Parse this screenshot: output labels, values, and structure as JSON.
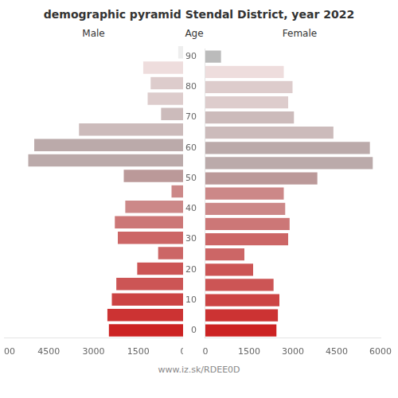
{
  "chart_data": {
    "type": "bar",
    "orientation": "horizontal",
    "title": "demographic pyramid Stendal District, year 2022",
    "ylabel": "Age",
    "annotations": [
      "www.iz.sk/RDEE0D"
    ],
    "categories": [
      "0",
      null,
      "10",
      null,
      "20",
      null,
      "30",
      null,
      "40",
      null,
      "50",
      null,
      "60",
      null,
      "70",
      null,
      "80",
      null,
      "90"
    ],
    "series": [
      {
        "name": "Male",
        "values": [
          2500,
          2550,
          2400,
          2250,
          1550,
          850,
          2200,
          2300,
          1950,
          400,
          2000,
          5200,
          5000,
          3500,
          750,
          1200,
          1100,
          1350,
          180
        ],
        "colors": [
          "#cc2222",
          "#cc3333",
          "#cc4444",
          "#cc5555",
          "#cc5555",
          "#cc6666",
          "#cc6666",
          "#cc7777",
          "#cc8888",
          "#cc8888",
          "#bb9999",
          "#bbaaaa",
          "#bbaaaa",
          "#ccbbbb",
          "#ccbbbb",
          "#ddcccc",
          "#ddcccc",
          "#eedddd",
          "#eeeeee"
        ]
      },
      {
        "name": "Female",
        "values": [
          2450,
          2500,
          2550,
          2350,
          1650,
          1350,
          2850,
          2900,
          2750,
          2700,
          3850,
          5750,
          5650,
          4400,
          3050,
          2850,
          3000,
          2700,
          550
        ],
        "colors": [
          "#cc2222",
          "#cc3333",
          "#cc4444",
          "#cc5555",
          "#cc5555",
          "#cc6666",
          "#cc6666",
          "#cc7777",
          "#cc8888",
          "#cc8888",
          "#bb9999",
          "#bbaaaa",
          "#bbaaaa",
          "#ccbbbb",
          "#ccbbbb",
          "#ddcccc",
          "#ddcccc",
          "#eedddd",
          "#bbbbbb"
        ]
      }
    ],
    "xlim": [
      0,
      6000
    ],
    "xticks": [
      0,
      1500,
      3000,
      4500,
      6000
    ],
    "grid": false
  }
}
